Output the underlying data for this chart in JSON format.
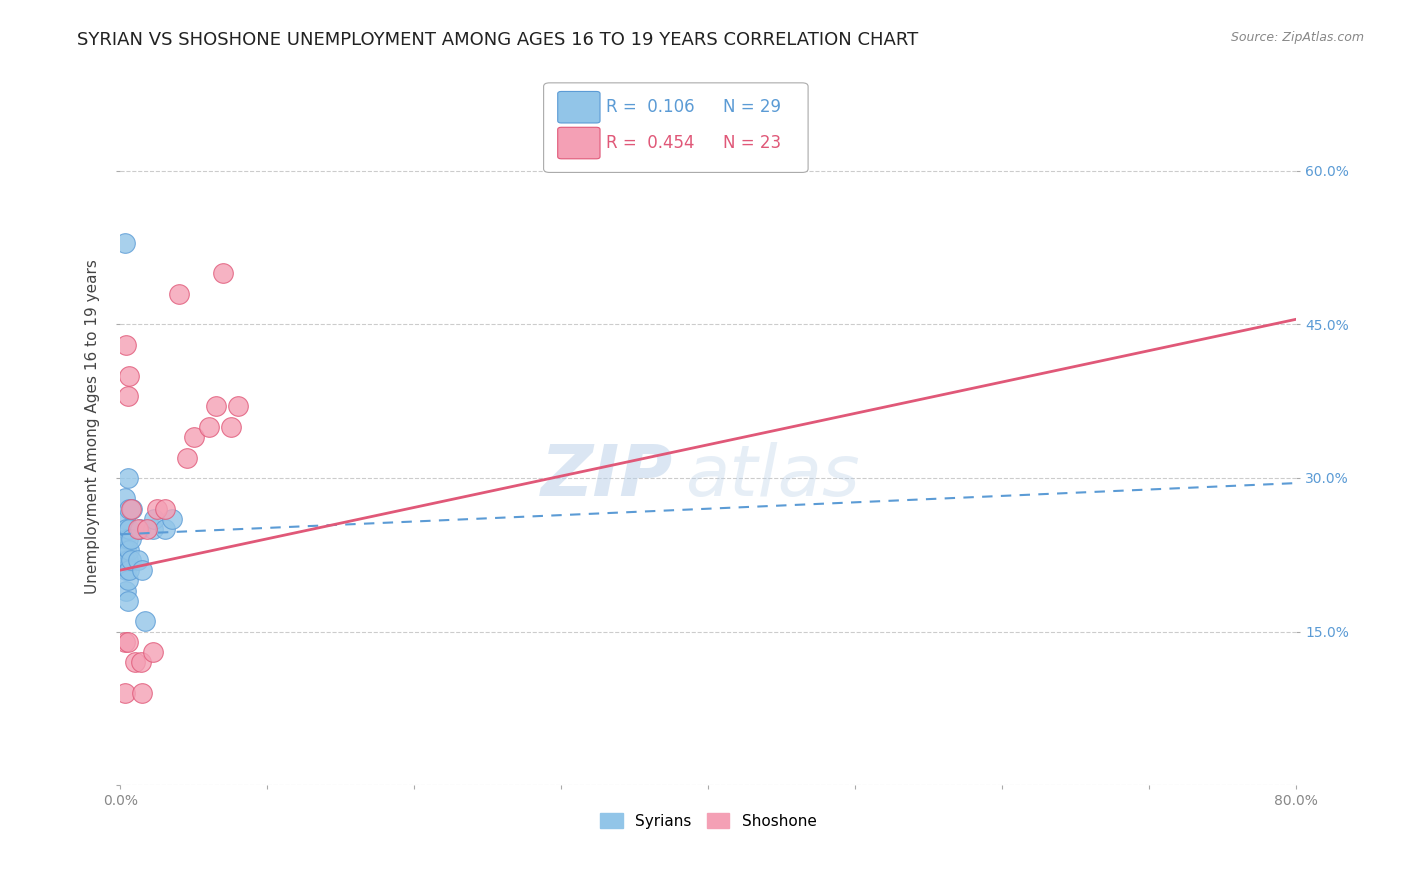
{
  "title": "SYRIAN VS SHOSHONE UNEMPLOYMENT AMONG AGES 16 TO 19 YEARS CORRELATION CHART",
  "source": "Source: ZipAtlas.com",
  "ylabel": "Unemployment Among Ages 16 to 19 years",
  "xlim": [
    0.0,
    0.8
  ],
  "ylim": [
    0.0,
    0.7
  ],
  "syrians_color": "#92c5e8",
  "shoshone_color": "#f4a0b5",
  "syrians_line_color": "#5b9bd5",
  "shoshone_line_color": "#e05878",
  "watermark_zip": "ZIP",
  "watermark_atlas": "atlas",
  "syrians_x": [
    0.003,
    0.003,
    0.003,
    0.003,
    0.003,
    0.004,
    0.004,
    0.004,
    0.004,
    0.005,
    0.005,
    0.005,
    0.005,
    0.005,
    0.006,
    0.006,
    0.006,
    0.006,
    0.007,
    0.007,
    0.008,
    0.012,
    0.013,
    0.015,
    0.017,
    0.022,
    0.023,
    0.03,
    0.035
  ],
  "syrians_y": [
    0.22,
    0.24,
    0.26,
    0.28,
    0.53,
    0.19,
    0.21,
    0.23,
    0.25,
    0.18,
    0.2,
    0.22,
    0.24,
    0.3,
    0.21,
    0.23,
    0.25,
    0.27,
    0.22,
    0.24,
    0.27,
    0.22,
    0.25,
    0.21,
    0.16,
    0.25,
    0.26,
    0.25,
    0.26
  ],
  "shoshone_x": [
    0.003,
    0.003,
    0.004,
    0.005,
    0.005,
    0.006,
    0.007,
    0.01,
    0.012,
    0.014,
    0.015,
    0.018,
    0.022,
    0.025,
    0.03,
    0.04,
    0.045,
    0.05,
    0.06,
    0.065,
    0.07,
    0.075,
    0.08
  ],
  "shoshone_y": [
    0.09,
    0.14,
    0.43,
    0.14,
    0.38,
    0.4,
    0.27,
    0.12,
    0.25,
    0.12,
    0.09,
    0.25,
    0.13,
    0.27,
    0.27,
    0.48,
    0.32,
    0.34,
    0.35,
    0.37,
    0.5,
    0.35,
    0.37
  ],
  "syrians_line_y_start": 0.245,
  "syrians_line_y_end": 0.295,
  "shoshone_line_y_start": 0.21,
  "shoshone_line_y_end": 0.455,
  "background_color": "#ffffff",
  "grid_color": "#cccccc",
  "title_fontsize": 13,
  "axis_label_fontsize": 11,
  "tick_fontsize": 10,
  "right_tick_color": "#5b9bd5"
}
